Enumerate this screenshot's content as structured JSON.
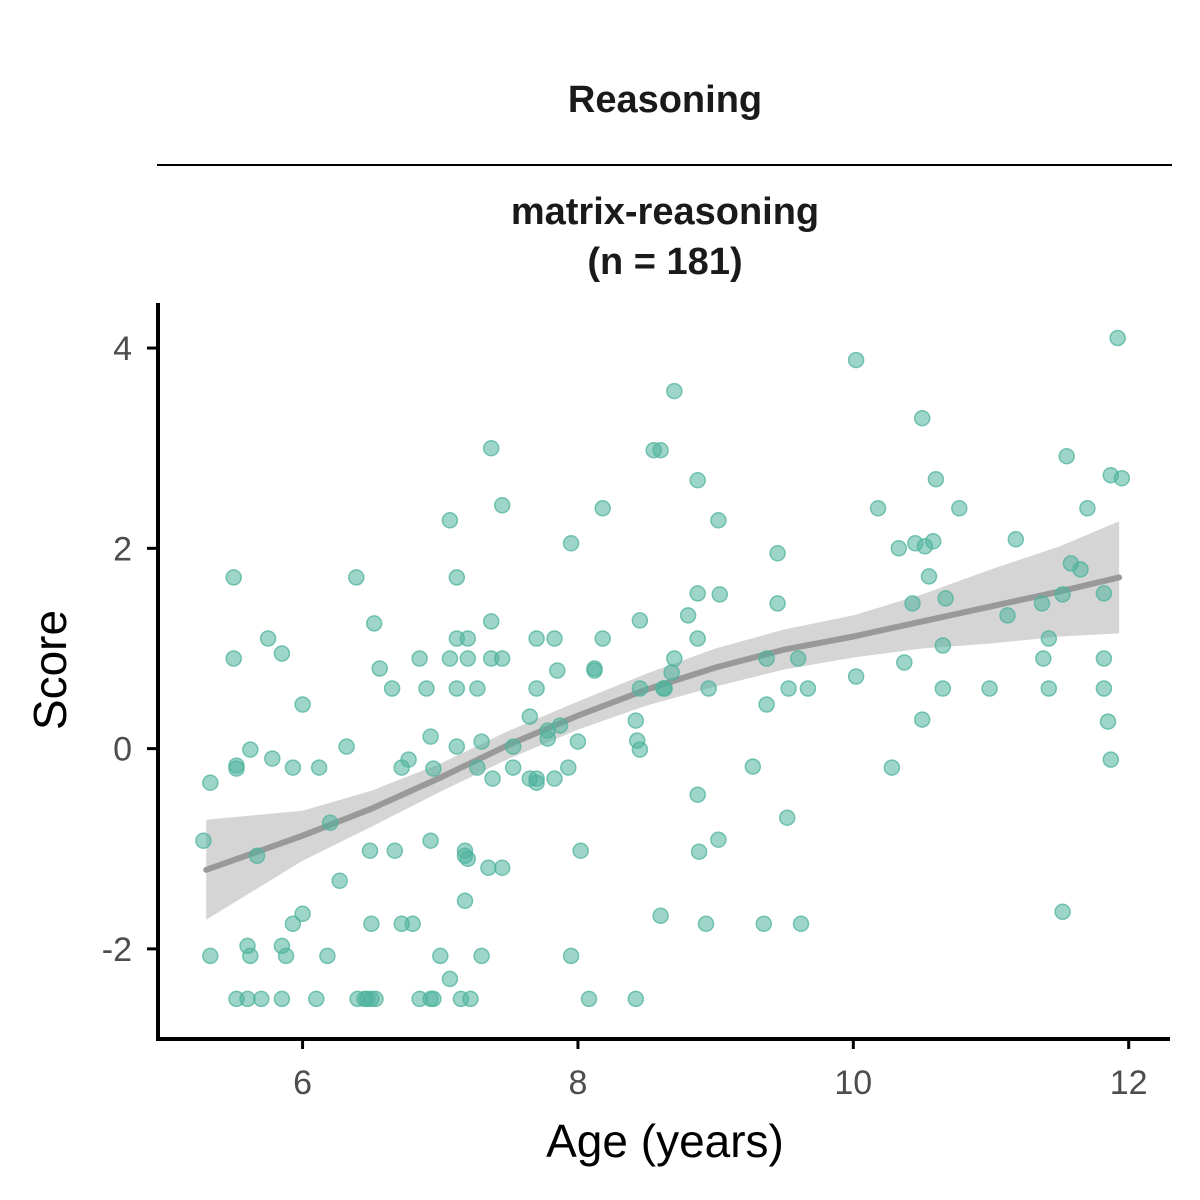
{
  "colors": {
    "points": "#4fb39c",
    "smooth_line": "#999999",
    "ribbon": "#d3d3d3",
    "axis": "#000000"
  },
  "chart_data": {
    "type": "scatter",
    "facet_title": "Reasoning",
    "strip_title_line1": "matrix-reasoning",
    "strip_title_line2": "(n = 181)",
    "xlabel": "Age (years)",
    "ylabel": "Score",
    "xlim": [
      4.95,
      12.3
    ],
    "ylim": [
      -2.9,
      4.45
    ],
    "x_ticks": [
      6,
      8,
      10,
      12
    ],
    "y_ticks": [
      -2,
      0,
      2,
      4
    ],
    "x_tick_labels": [
      "6",
      "8",
      "10",
      "12"
    ],
    "y_tick_labels": [
      "-2",
      "0",
      "2",
      "4"
    ],
    "grid": false,
    "points": [
      [
        5.28,
        -0.92
      ],
      [
        5.33,
        -0.34
      ],
      [
        5.33,
        -2.07
      ],
      [
        5.5,
        1.71
      ],
      [
        5.5,
        0.9
      ],
      [
        5.52,
        -0.17
      ],
      [
        5.52,
        -0.2
      ],
      [
        5.52,
        -2.5
      ],
      [
        5.6,
        -2.5
      ],
      [
        5.6,
        -1.97
      ],
      [
        5.62,
        -0.01
      ],
      [
        5.62,
        -2.07
      ],
      [
        5.67,
        -1.07
      ],
      [
        5.7,
        -2.5
      ],
      [
        5.75,
        1.1
      ],
      [
        5.78,
        -0.1
      ],
      [
        5.85,
        0.95
      ],
      [
        5.85,
        -1.97
      ],
      [
        5.85,
        -2.5
      ],
      [
        5.88,
        -2.07
      ],
      [
        5.93,
        -0.19
      ],
      [
        5.93,
        -1.75
      ],
      [
        6.0,
        0.44
      ],
      [
        6.0,
        -1.65
      ],
      [
        6.1,
        -2.5
      ],
      [
        6.12,
        -0.19
      ],
      [
        6.18,
        -2.07
      ],
      [
        6.2,
        -0.74
      ],
      [
        6.27,
        -1.32
      ],
      [
        6.32,
        0.02
      ],
      [
        6.39,
        1.71
      ],
      [
        6.4,
        -2.5
      ],
      [
        6.45,
        -2.5
      ],
      [
        6.47,
        -2.5
      ],
      [
        6.49,
        -1.02
      ],
      [
        6.5,
        -2.5
      ],
      [
        6.5,
        -1.75
      ],
      [
        6.52,
        1.25
      ],
      [
        6.53,
        -2.5
      ],
      [
        6.56,
        0.8
      ],
      [
        6.65,
        0.6
      ],
      [
        6.67,
        -1.02
      ],
      [
        6.72,
        -0.19
      ],
      [
        6.72,
        -1.75
      ],
      [
        6.77,
        -0.11
      ],
      [
        6.8,
        -1.75
      ],
      [
        6.85,
        0.9
      ],
      [
        6.85,
        -2.5
      ],
      [
        6.9,
        0.6
      ],
      [
        6.93,
        0.12
      ],
      [
        6.93,
        -0.92
      ],
      [
        6.93,
        -2.5
      ],
      [
        6.95,
        -0.2
      ],
      [
        6.95,
        -2.5
      ],
      [
        7.0,
        -2.07
      ],
      [
        7.07,
        2.28
      ],
      [
        7.07,
        0.9
      ],
      [
        7.07,
        -2.3
      ],
      [
        7.12,
        1.71
      ],
      [
        7.12,
        0.6
      ],
      [
        7.12,
        1.1
      ],
      [
        7.12,
        0.02
      ],
      [
        7.15,
        -2.5
      ],
      [
        7.18,
        -1.52
      ],
      [
        7.18,
        -1.02
      ],
      [
        7.18,
        -1.07
      ],
      [
        7.2,
        0.9
      ],
      [
        7.2,
        1.1
      ],
      [
        7.2,
        -1.1
      ],
      [
        7.22,
        -2.5
      ],
      [
        7.27,
        0.6
      ],
      [
        7.27,
        -0.19
      ],
      [
        7.3,
        0.07
      ],
      [
        7.3,
        -2.07
      ],
      [
        7.35,
        -1.19
      ],
      [
        7.37,
        3.0
      ],
      [
        7.37,
        1.27
      ],
      [
        7.37,
        0.9
      ],
      [
        7.38,
        -0.3
      ],
      [
        7.45,
        2.43
      ],
      [
        7.45,
        0.9
      ],
      [
        7.45,
        -1.19
      ],
      [
        7.53,
        0.02
      ],
      [
        7.53,
        -0.19
      ],
      [
        7.65,
        0.32
      ],
      [
        7.65,
        -0.3
      ],
      [
        7.7,
        1.1
      ],
      [
        7.7,
        0.6
      ],
      [
        7.7,
        -0.34
      ],
      [
        7.7,
        -0.3
      ],
      [
        7.78,
        0.1
      ],
      [
        7.78,
        0.18
      ],
      [
        7.83,
        1.1
      ],
      [
        7.83,
        -0.3
      ],
      [
        7.85,
        0.78
      ],
      [
        7.87,
        0.23
      ],
      [
        7.93,
        -0.19
      ],
      [
        7.95,
        2.05
      ],
      [
        7.95,
        -2.07
      ],
      [
        8.0,
        0.07
      ],
      [
        8.02,
        -1.02
      ],
      [
        8.08,
        -2.5
      ],
      [
        8.12,
        0.8
      ],
      [
        8.12,
        0.78
      ],
      [
        8.18,
        1.1
      ],
      [
        8.18,
        2.4
      ],
      [
        8.42,
        0.28
      ],
      [
        8.42,
        -2.5
      ],
      [
        8.43,
        0.08
      ],
      [
        8.45,
        1.28
      ],
      [
        8.45,
        0.6
      ],
      [
        8.45,
        -0.01
      ],
      [
        8.55,
        2.98
      ],
      [
        8.6,
        2.98
      ],
      [
        8.6,
        -1.67
      ],
      [
        8.62,
        0.6
      ],
      [
        8.63,
        0.6
      ],
      [
        8.68,
        0.76
      ],
      [
        8.7,
        3.57
      ],
      [
        8.7,
        0.9
      ],
      [
        8.8,
        1.33
      ],
      [
        8.87,
        2.68
      ],
      [
        8.87,
        1.55
      ],
      [
        8.87,
        1.1
      ],
      [
        8.87,
        -0.46
      ],
      [
        8.88,
        -1.03
      ],
      [
        8.93,
        -1.75
      ],
      [
        8.95,
        0.6
      ],
      [
        9.02,
        2.28
      ],
      [
        9.02,
        -0.91
      ],
      [
        9.03,
        1.54
      ],
      [
        9.27,
        -0.18
      ],
      [
        9.35,
        -1.75
      ],
      [
        9.37,
        0.9
      ],
      [
        9.37,
        0.44
      ],
      [
        9.45,
        1.95
      ],
      [
        9.45,
        1.45
      ],
      [
        9.52,
        -0.69
      ],
      [
        9.53,
        0.6
      ],
      [
        9.6,
        0.9
      ],
      [
        9.62,
        -1.75
      ],
      [
        9.67,
        0.6
      ],
      [
        10.02,
        3.88
      ],
      [
        10.02,
        0.72
      ],
      [
        10.18,
        2.4
      ],
      [
        10.28,
        -0.19
      ],
      [
        10.33,
        2.0
      ],
      [
        10.37,
        0.86
      ],
      [
        10.43,
        1.45
      ],
      [
        10.45,
        2.05
      ],
      [
        10.5,
        3.3
      ],
      [
        10.5,
        0.29
      ],
      [
        10.52,
        2.02
      ],
      [
        10.55,
        1.72
      ],
      [
        10.58,
        2.07
      ],
      [
        10.6,
        2.69
      ],
      [
        10.65,
        1.03
      ],
      [
        10.65,
        0.6
      ],
      [
        10.67,
        1.5
      ],
      [
        10.77,
        2.4
      ],
      [
        10.99,
        0.6
      ],
      [
        11.12,
        1.33
      ],
      [
        11.18,
        2.09
      ],
      [
        11.37,
        1.45
      ],
      [
        11.38,
        0.9
      ],
      [
        11.42,
        1.1
      ],
      [
        11.42,
        0.6
      ],
      [
        11.52,
        1.54
      ],
      [
        11.52,
        -1.63
      ],
      [
        11.55,
        2.92
      ],
      [
        11.58,
        1.85
      ],
      [
        11.65,
        1.79
      ],
      [
        11.7,
        2.4
      ],
      [
        11.82,
        1.55
      ],
      [
        11.82,
        0.9
      ],
      [
        11.82,
        0.6
      ],
      [
        11.85,
        0.27
      ],
      [
        11.87,
        2.73
      ],
      [
        11.87,
        -0.11
      ],
      [
        11.92,
        4.1
      ],
      [
        11.95,
        2.7
      ]
    ],
    "fit_line": [
      [
        5.3,
        -1.21
      ],
      [
        6.0,
        -0.87
      ],
      [
        6.5,
        -0.6
      ],
      [
        7.0,
        -0.29
      ],
      [
        7.5,
        0.04
      ],
      [
        8.0,
        0.33
      ],
      [
        8.5,
        0.59
      ],
      [
        9.0,
        0.81
      ],
      [
        9.5,
        0.99
      ],
      [
        10.0,
        1.12
      ],
      [
        10.5,
        1.27
      ],
      [
        11.0,
        1.42
      ],
      [
        11.5,
        1.57
      ],
      [
        11.93,
        1.71
      ]
    ],
    "ribbon_lower": [
      [
        5.3,
        -1.71
      ],
      [
        6.0,
        -1.12
      ],
      [
        6.5,
        -0.78
      ],
      [
        7.0,
        -0.43
      ],
      [
        7.5,
        -0.1
      ],
      [
        8.0,
        0.19
      ],
      [
        8.5,
        0.43
      ],
      [
        9.0,
        0.62
      ],
      [
        9.5,
        0.79
      ],
      [
        10.0,
        0.91
      ],
      [
        10.5,
        1.0
      ],
      [
        11.0,
        1.05
      ],
      [
        11.5,
        1.12
      ],
      [
        11.93,
        1.15
      ]
    ],
    "ribbon_upper": [
      [
        5.3,
        -0.71
      ],
      [
        6.0,
        -0.62
      ],
      [
        6.5,
        -0.42
      ],
      [
        7.0,
        -0.15
      ],
      [
        7.5,
        0.18
      ],
      [
        8.0,
        0.47
      ],
      [
        8.5,
        0.75
      ],
      [
        9.0,
        1.0
      ],
      [
        9.5,
        1.19
      ],
      [
        10.0,
        1.33
      ],
      [
        10.5,
        1.54
      ],
      [
        11.0,
        1.79
      ],
      [
        11.5,
        2.02
      ],
      [
        11.93,
        2.27
      ]
    ]
  }
}
